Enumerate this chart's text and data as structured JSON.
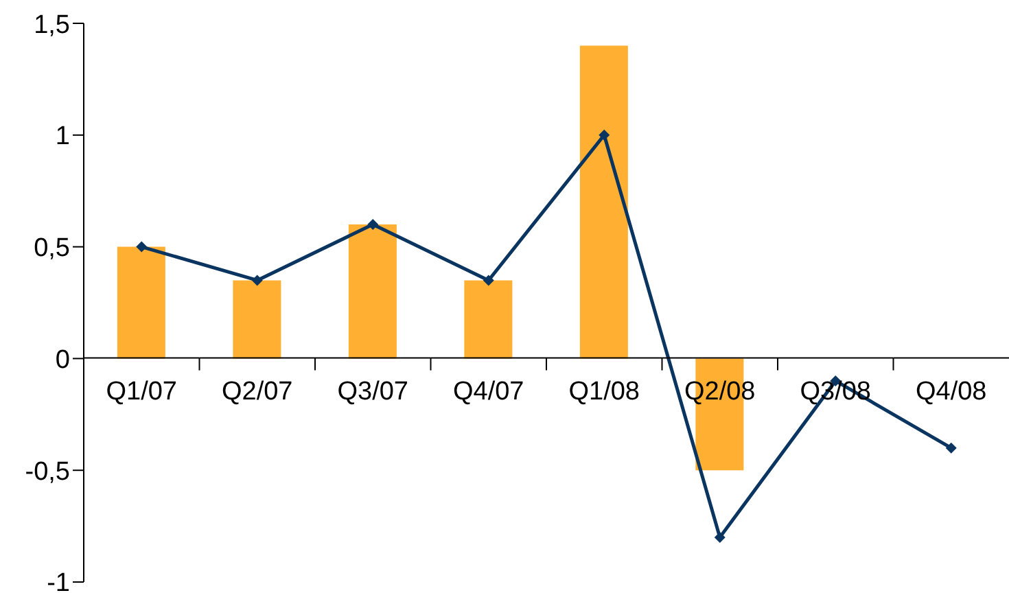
{
  "chart_data": {
    "type": "bar",
    "categories": [
      "Q1/07",
      "Q2/07",
      "Q3/07",
      "Q4/07",
      "Q1/08",
      "Q2/08",
      "Q3/08",
      "Q4/08"
    ],
    "series": [
      {
        "color": "#ffb033",
        "values": [
          0.5,
          0.35,
          0.6,
          0.35,
          1.4,
          -0.5,
          null,
          null
        ]
      },
      {
        "type": "line",
        "color": "#0b3561",
        "values": [
          0.5,
          0.35,
          0.6,
          0.35,
          1.0,
          -0.8,
          -0.1,
          -0.4
        ]
      }
    ],
    "ylim": [
      -1,
      1.5
    ],
    "yticks": [
      {
        "value": -1,
        "label": "-1"
      },
      {
        "value": -0.5,
        "label": "-0,5"
      },
      {
        "value": 0,
        "label": "0"
      },
      {
        "value": 0.5,
        "label": "0,5"
      },
      {
        "value": 1,
        "label": "1"
      },
      {
        "value": 1.5,
        "label": "1,5"
      }
    ],
    "grid": false,
    "legend": false,
    "marker": "diamond",
    "line_style": "solid"
  }
}
